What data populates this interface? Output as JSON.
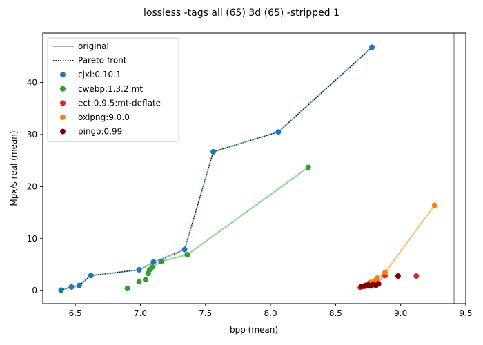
{
  "chart_data": {
    "type": "scatter",
    "title": "lossless -tags all (65) 3d (65) -stripped 1",
    "xlabel": "bpp (mean)",
    "ylabel": "Mpx/s real (mean)",
    "xlim": [
      6.25,
      9.5
    ],
    "ylim": [
      -2.5,
      49.5
    ],
    "xticks": [
      "6.5",
      "7.0",
      "7.5",
      "8.0",
      "8.5",
      "9.0",
      "9.5"
    ],
    "yticks": [
      "0",
      "10",
      "20",
      "30",
      "40"
    ],
    "grid": false,
    "legend_position": "top-left",
    "reference_line": {
      "name": "original",
      "x": 9.41,
      "color": "#808080"
    },
    "pareto": {
      "name": "Pareto front",
      "points": [
        [
          6.39,
          0.1
        ],
        [
          6.47,
          0.7
        ],
        [
          6.53,
          1.0
        ],
        [
          6.62,
          2.9
        ],
        [
          6.99,
          4.0
        ],
        [
          7.34,
          7.9
        ],
        [
          7.56,
          26.7
        ],
        [
          8.06,
          30.5
        ],
        [
          8.78,
          46.8
        ]
      ]
    },
    "series": [
      {
        "name": "cjxl:0.10.1",
        "color": "#1f77b4",
        "line_color": "#1f77b4",
        "points": [
          [
            6.39,
            0.1
          ],
          [
            6.47,
            0.7
          ],
          [
            6.53,
            1.0
          ],
          [
            6.62,
            2.9
          ],
          [
            6.99,
            4.0
          ],
          [
            7.1,
            5.5
          ],
          [
            7.34,
            7.9
          ],
          [
            7.56,
            26.7
          ],
          [
            8.06,
            30.5
          ],
          [
            8.78,
            46.8
          ]
        ],
        "line": [
          [
            6.39,
            0.1
          ],
          [
            6.47,
            0.7
          ],
          [
            6.53,
            1.0
          ],
          [
            6.62,
            2.9
          ],
          [
            6.99,
            4.0
          ],
          [
            7.1,
            5.5
          ],
          [
            7.34,
            7.9
          ],
          [
            7.56,
            26.7
          ],
          [
            8.06,
            30.5
          ],
          [
            8.78,
            46.8
          ]
        ]
      },
      {
        "name": "cwebp:1.3.2:mt",
        "color": "#2ca02c",
        "line_color": "#98d695",
        "points": [
          [
            6.9,
            0.4
          ],
          [
            6.99,
            1.7
          ],
          [
            7.04,
            2.1
          ],
          [
            7.06,
            3.3
          ],
          [
            7.07,
            4.0
          ],
          [
            7.09,
            4.5
          ],
          [
            7.16,
            5.6
          ],
          [
            7.36,
            6.9
          ],
          [
            8.29,
            23.7
          ]
        ],
        "line": [
          [
            7.09,
            4.5
          ],
          [
            7.16,
            5.6
          ],
          [
            7.36,
            6.9
          ],
          [
            8.29,
            23.7
          ]
        ]
      },
      {
        "name": "ect:0.9.5:mt-deflate",
        "color": "#d62728",
        "line_color": "#e39a9b",
        "points": [
          [
            8.69,
            0.6
          ],
          [
            8.72,
            0.8
          ],
          [
            8.75,
            0.9
          ],
          [
            8.77,
            1.1
          ],
          [
            8.8,
            1.3
          ],
          [
            8.82,
            1.5
          ],
          [
            8.88,
            2.9
          ],
          [
            9.12,
            2.8
          ]
        ],
        "line": [
          [
            8.82,
            1.5
          ],
          [
            8.88,
            2.9
          ]
        ]
      },
      {
        "name": "oxipng:9.0.0",
        "color": "#ff7f0e",
        "line_color": "#fdbe85",
        "points": [
          [
            8.77,
            1.6
          ],
          [
            8.8,
            1.9
          ],
          [
            8.82,
            2.4
          ],
          [
            8.88,
            3.5
          ],
          [
            9.26,
            16.4
          ]
        ],
        "line": [
          [
            8.77,
            1.6
          ],
          [
            8.8,
            1.9
          ],
          [
            8.82,
            2.4
          ],
          [
            8.88,
            3.5
          ],
          [
            9.26,
            16.4
          ]
        ]
      },
      {
        "name": "pingo:0.99",
        "color": "#800000",
        "line_color": "#800000",
        "points": [
          [
            8.7,
            0.8
          ],
          [
            8.73,
            1.0
          ],
          [
            8.75,
            1.1
          ],
          [
            8.77,
            0.9
          ],
          [
            8.79,
            1.2
          ],
          [
            8.81,
            1.0
          ],
          [
            8.83,
            1.3
          ],
          [
            8.98,
            2.8
          ]
        ],
        "line": []
      }
    ]
  }
}
